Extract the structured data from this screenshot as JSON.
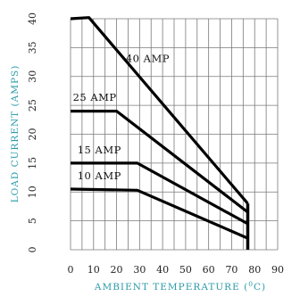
{
  "chart_data": {
    "type": "line",
    "title": "",
    "xlabel": "AMBIENT TEMPERATURE (",
    "xlabel_unit_sup": "0",
    "xlabel_unit_tail": "C)",
    "ylabel": "LOAD CURRENT (AMPS)",
    "xlim": [
      0,
      90
    ],
    "ylim": [
      0,
      40
    ],
    "x_ticks": [
      0,
      10,
      20,
      30,
      40,
      50,
      60,
      70,
      80,
      90
    ],
    "y_ticks": [
      0,
      5,
      10,
      15,
      20,
      25,
      30,
      35,
      40
    ],
    "grid": true,
    "axis_title_color": "#2a9aa8",
    "line_color": "#000000",
    "series": [
      {
        "name": "40 AMP",
        "points": [
          [
            0,
            40
          ],
          [
            8,
            40.2
          ],
          [
            77,
            8
          ]
        ]
      },
      {
        "name": "25 AMP",
        "points": [
          [
            0,
            24
          ],
          [
            20,
            24
          ],
          [
            77,
            6.5
          ]
        ]
      },
      {
        "name": "15 AMP",
        "points": [
          [
            0,
            15
          ],
          [
            29,
            15
          ],
          [
            77,
            4.5
          ]
        ]
      },
      {
        "name": "10 AMP",
        "points": [
          [
            0,
            10.5
          ],
          [
            29,
            10.3
          ],
          [
            77,
            2
          ]
        ]
      }
    ],
    "vertical_line": {
      "x": 77,
      "y_range": [
        0,
        8
      ]
    }
  }
}
